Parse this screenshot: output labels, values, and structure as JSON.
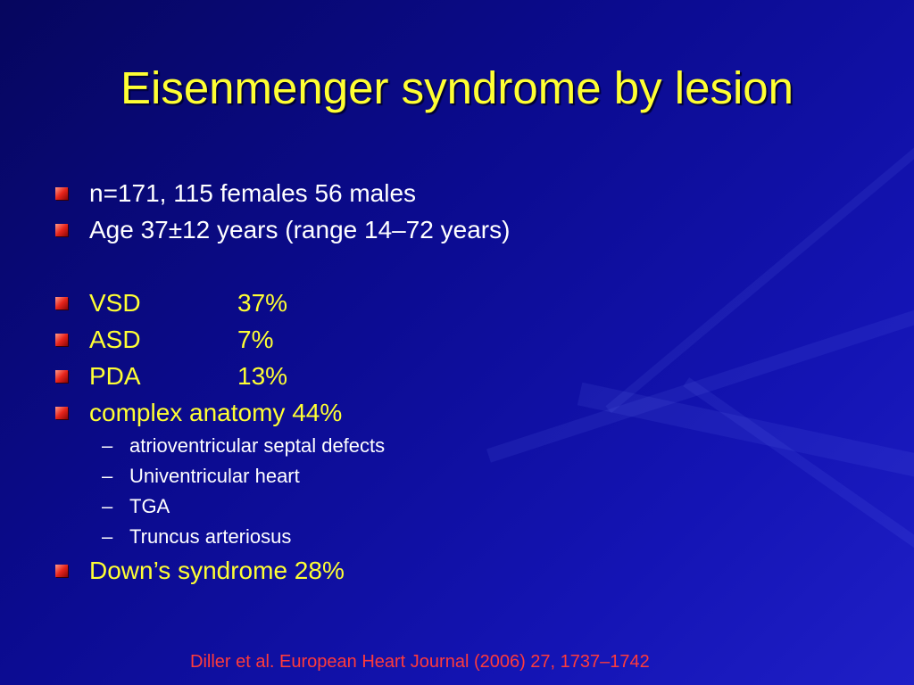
{
  "colors": {
    "title": "#ffff33",
    "body_text": "#ffffff",
    "highlight_text": "#ffff33",
    "citation": "#ff3b3b",
    "bullet_marker": "#e8251c",
    "background": "#0b0b8f"
  },
  "slide": {
    "title": "Eisenmenger syndrome by lesion",
    "bullets": [
      {
        "text": "n=171, 115 females 56 males",
        "color": "body_text"
      },
      {
        "text": "Age 37±12 years (range 14–72 years)",
        "color": "body_text"
      },
      {
        "label": "VSD",
        "value": "37%",
        "color": "highlight_text"
      },
      {
        "label": "ASD",
        "value": "7%",
        "color": "highlight_text"
      },
      {
        "label": "PDA",
        "value": "13%",
        "color": "highlight_text"
      },
      {
        "text": "complex anatomy 44%",
        "color": "highlight_text"
      },
      {
        "text": "Down’s syndrome 28%",
        "color": "highlight_text"
      }
    ],
    "sub_bullets": {
      "dash": "–",
      "items": [
        "atrioventricular septal defects",
        "Univentricular heart",
        "TGA",
        "Truncus arteriosus"
      ]
    },
    "citation": "Diller et al. European Heart Journal (2006) 27, 1737–1742"
  }
}
